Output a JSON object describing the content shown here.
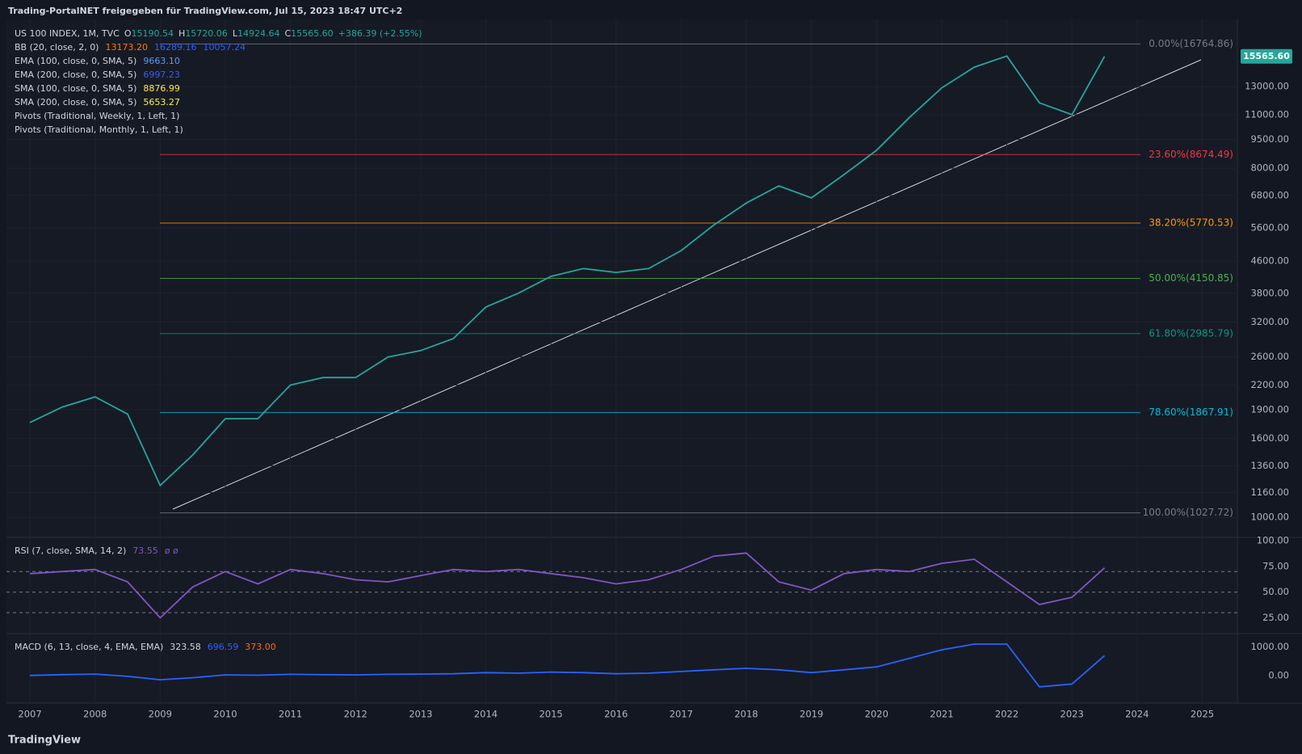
{
  "header": {
    "title": "Trading-PortalNET freigegeben für TradingView.com, Jul 15, 2023 18:47 UTC+2"
  },
  "footer": {
    "brand": "TradingView"
  },
  "chart_data": [
    {
      "type": "line",
      "log_scale": true,
      "x": [
        2007.0,
        2007.5,
        2008.0,
        2008.5,
        2009.0,
        2009.5,
        2010.0,
        2010.5,
        2011.0,
        2011.5,
        2012.0,
        2012.5,
        2013.0,
        2013.5,
        2014.0,
        2014.5,
        2015.0,
        2015.5,
        2016.0,
        2016.5,
        2017.0,
        2017.5,
        2018.0,
        2018.5,
        2019.0,
        2019.5,
        2020.0,
        2020.5,
        2021.0,
        2021.5,
        2022.0,
        2022.5,
        2023.0,
        2023.5
      ],
      "series": [
        {
          "name": "US 100 INDEX, 1M, TVC",
          "color": "#26a69a",
          "values": [
            1760,
            1930,
            2050,
            1850,
            1210,
            1450,
            1800,
            1800,
            2200,
            2300,
            2300,
            2600,
            2700,
            2900,
            3500,
            3800,
            4200,
            4400,
            4300,
            4400,
            4900,
            5700,
            6500,
            7200,
            6700,
            7700,
            8900,
            10800,
            12900,
            14600,
            15600,
            11800,
            11000,
            15565.6
          ]
        }
      ],
      "ohlc_labels": [
        "O",
        "H",
        "L",
        "C"
      ],
      "ohlc_values": [
        "15190.54",
        "15720.06",
        "14924.64",
        "15565.60"
      ],
      "change": "+386.39 (+2.55%)",
      "indicators": [
        {
          "label": "BB (20, close, 2, 0)",
          "values": [
            "13173.20",
            "16289.16",
            "10057.24"
          ],
          "colors": [
            "#f57c00",
            "#2962ff",
            "#2962ff"
          ]
        },
        {
          "label": "EMA (100, close, 0, SMA, 5)",
          "values": [
            "9663.10"
          ],
          "colors": [
            "#5b9cf6"
          ]
        },
        {
          "label": "EMA (200, close, 0, SMA, 5)",
          "values": [
            "6997.23"
          ],
          "colors": [
            "#3f5bf0"
          ]
        },
        {
          "label": "SMA (100, close, 0, SMA, 5)",
          "values": [
            "8876.99"
          ],
          "colors": [
            "#ffeb3b"
          ]
        },
        {
          "label": "SMA (200, close, 0, SMA, 5)",
          "values": [
            "5653.27"
          ],
          "colors": [
            "#f5f542"
          ]
        },
        {
          "label": "Pivots (Traditional, Weekly, 1, Left, 1)"
        },
        {
          "label": "Pivots (Traditional, Monthly, 1, Left, 1)"
        }
      ],
      "last_price": {
        "value": 15565.6,
        "label": "15565.60",
        "color": "#26a69a"
      },
      "fib_levels": [
        {
          "value": 16764.86,
          "label": "0.00%(16764.86)",
          "color": "#787b86"
        },
        {
          "value": 8674.49,
          "label": "23.60%(8674.49)",
          "color": "#f23645"
        },
        {
          "value": 5770.53,
          "label": "38.20%(5770.53)",
          "color": "#ff9800"
        },
        {
          "value": 4150.85,
          "label": "50.00%(4150.85)",
          "color": "#4caf50"
        },
        {
          "value": 2985.79,
          "label": "61.80%(2985.79)",
          "color": "#089981"
        },
        {
          "value": 1867.91,
          "label": "78.60%(1867.91)",
          "color": "#00bcd4"
        },
        {
          "value": 1027.72,
          "label": "100.00%(1027.72)",
          "color": "#787b86"
        }
      ],
      "xlim": [
        2006.64,
        2025.54
      ],
      "xticks": [
        2007,
        2008,
        2009,
        2010,
        2011,
        2012,
        2013,
        2014,
        2015,
        2016,
        2017,
        2018,
        2019,
        2020,
        2021,
        2022,
        2023,
        2024,
        2025
      ],
      "ylim": [
        892,
        19400
      ],
      "yticks": [
        {
          "value": 1000,
          "label": "1000.00"
        },
        {
          "value": 1160,
          "label": "1160.00"
        },
        {
          "value": 1360,
          "label": "1360.00"
        },
        {
          "value": 1600,
          "label": "1600.00"
        },
        {
          "value": 1900,
          "label": "1900.00"
        },
        {
          "value": 2200,
          "label": "2200.00"
        },
        {
          "value": 2600,
          "label": "2600.00"
        },
        {
          "value": 3200,
          "label": "3200.00"
        },
        {
          "value": 3800,
          "label": "3800.00"
        },
        {
          "value": 4600,
          "label": "4600.00"
        },
        {
          "value": 5600,
          "label": "5600.00"
        },
        {
          "value": 6800,
          "label": "6800.00"
        },
        {
          "value": 8000,
          "label": "8000.00"
        },
        {
          "value": 9500,
          "label": "9500.00"
        },
        {
          "value": 11000,
          "label": "11000.00"
        },
        {
          "value": 13000,
          "label": "13000.00"
        }
      ],
      "grid": true
    },
    {
      "type": "line",
      "title": "RSI (7, close, SMA, 14, 2)",
      "legend_values": [
        "73.55",
        "ø ø"
      ],
      "x": [
        2007.0,
        2007.5,
        2008.0,
        2008.5,
        2009.0,
        2009.5,
        2010.0,
        2010.5,
        2011.0,
        2011.5,
        2012.0,
        2012.5,
        2013.0,
        2013.5,
        2014.0,
        2014.5,
        2015.0,
        2015.5,
        2016.0,
        2016.5,
        2017.0,
        2017.5,
        2018.0,
        2018.5,
        2019.0,
        2019.5,
        2020.0,
        2020.5,
        2021.0,
        2021.5,
        2022.0,
        2022.5,
        2023.0,
        2023.5
      ],
      "series": [
        {
          "color": "#7e57c2",
          "values": [
            68,
            70,
            72,
            60,
            25,
            55,
            70,
            58,
            72,
            68,
            62,
            60,
            66,
            72,
            70,
            72,
            68,
            64,
            58,
            62,
            72,
            85,
            88,
            60,
            52,
            68,
            72,
            70,
            78,
            82,
            60,
            38,
            45,
            73.55
          ]
        }
      ],
      "levels": [
        70,
        50,
        30
      ],
      "xlim": [
        2006.64,
        2025.54
      ],
      "ylim": [
        10.5,
        102.4
      ],
      "yticks": [
        {
          "value": 100,
          "label": "100.00"
        },
        {
          "value": 75,
          "label": "75.00"
        },
        {
          "value": 50,
          "label": "50.00"
        },
        {
          "value": 25,
          "label": "25.00"
        }
      ]
    },
    {
      "type": "line",
      "title": "MACD (6, 13, close, 4, EMA, EMA)",
      "legend_values": [
        "323.58",
        "696.59",
        "373.00"
      ],
      "legend_colors": [
        "#d1d4dc",
        "#2962ff",
        "#ff6d00"
      ],
      "x": [
        2007.0,
        2007.5,
        2008.0,
        2008.5,
        2009.0,
        2009.5,
        2010.0,
        2010.5,
        2011.0,
        2011.5,
        2012.0,
        2012.5,
        2013.0,
        2013.5,
        2014.0,
        2014.5,
        2015.0,
        2015.5,
        2016.0,
        2016.5,
        2017.0,
        2017.5,
        2018.0,
        2018.5,
        2019.0,
        2019.5,
        2020.0,
        2020.5,
        2021.0,
        2021.5,
        2022.0,
        2022.5,
        2023.0,
        2023.5
      ],
      "series": [
        {
          "color": "#2962ff",
          "values": [
            0,
            30,
            50,
            -30,
            -150,
            -80,
            20,
            10,
            40,
            30,
            20,
            40,
            50,
            60,
            100,
            80,
            120,
            100,
            60,
            80,
            140,
            200,
            250,
            200,
            100,
            200,
            300,
            600,
            900,
            1100,
            1100,
            -400,
            -300,
            696.59
          ]
        }
      ],
      "xlim": [
        2006.64,
        2025.54
      ],
      "ylim": [
        -941,
        1441
      ],
      "yticks": [
        {
          "value": 1000,
          "label": "1000.00"
        },
        {
          "value": 0,
          "label": "0.00"
        }
      ]
    }
  ]
}
